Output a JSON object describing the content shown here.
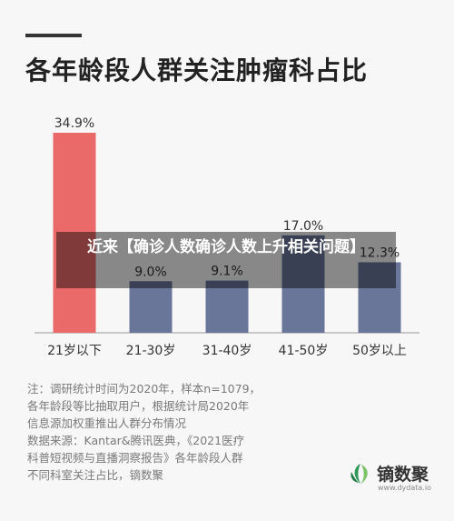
{
  "chart_data": {
    "type": "bar",
    "title": "各年龄段人群关注肿瘤科占比",
    "categories": [
      "21岁以下",
      "21-30岁",
      "31-40岁",
      "41-50岁",
      "50岁以上"
    ],
    "values": [
      34.9,
      9.0,
      9.1,
      17.0,
      12.3
    ],
    "value_labels": [
      "34.9%",
      "9.0%",
      "9.1%",
      "17.0%",
      "12.3%"
    ],
    "ylim": [
      0,
      34.9
    ],
    "grid": false,
    "colors": [
      "#e96a68",
      "#6a7699",
      "#6a7699",
      "#6a7699",
      "#6a7699"
    ],
    "xlabel": "",
    "ylabel": ""
  },
  "overlay_text": "近来【确诊人数确诊人数上升相关问题】",
  "notes": [
    "注：调研统计时间为2020年，样本n=1079，",
    "各年龄段等比抽取用户，根据统计局2020年",
    "信息源加权重推出人群分布情况",
    "数据来源：Kantar&腾讯医典，《2021医疗",
    "科普短视频与直播洞察报告》各年龄段人群",
    "不同科室关注占比，镝数聚"
  ],
  "brand": {
    "name": "镝数聚",
    "url": "www.dydata.io",
    "logo_icon": "leaf-logo-icon",
    "color": "#2e9a5a"
  }
}
